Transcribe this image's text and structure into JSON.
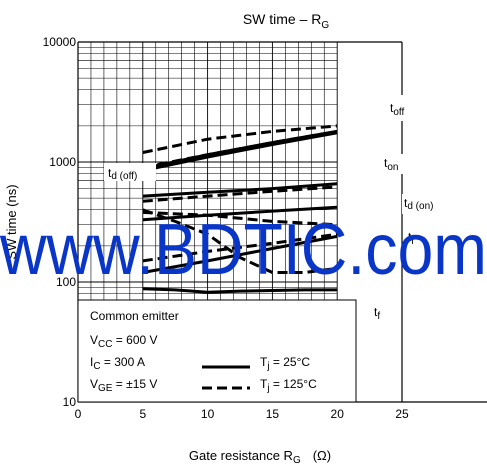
{
  "chart_data": {
    "type": "line",
    "title": "SW time – R",
    "title_sub": "G",
    "xlabel": "Gate resistance  R",
    "xlabel_sub": "G",
    "xlabel_unit": "(Ω)",
    "ylabel": "SW time   (ns)",
    "x_scale": "linear",
    "y_scale": "log",
    "xlim": [
      0,
      25
    ],
    "ylim": [
      10,
      10000
    ],
    "x_ticks": [
      0,
      5,
      10,
      15,
      20,
      25
    ],
    "x_tick_labels": [
      "0",
      "5",
      "10",
      "15",
      "20",
      "25"
    ],
    "y_ticks": [
      10,
      100,
      1000,
      10000
    ],
    "y_tick_labels": [
      "10",
      "100",
      "1000",
      "10000"
    ],
    "grid": true,
    "series": [
      {
        "curve": "toff",
        "condition": "Tj = 25°C",
        "x": [
          5,
          10,
          15,
          20
        ],
        "y": [
          880,
          1150,
          1450,
          1800
        ]
      },
      {
        "curve": "toff",
        "condition": "Tj = 125°C",
        "x": [
          5,
          10,
          15,
          20
        ],
        "y": [
          1200,
          1550,
          1800,
          2000
        ]
      },
      {
        "curve": "td(off)",
        "condition": "Tj = 25°C",
        "x": [
          5,
          10,
          15,
          20
        ],
        "y": [
          850,
          1100,
          1400,
          1750
        ]
      },
      {
        "curve": "td(off)",
        "condition": "Tj = 125°C",
        "x": [
          5,
          10,
          15,
          20
        ],
        "y": [
          900,
          1150,
          1450,
          1800
        ]
      },
      {
        "curve": "ton",
        "condition": "Tj = 25°C",
        "x": [
          5,
          10,
          15,
          20
        ],
        "y": [
          520,
          560,
          600,
          660
        ]
      },
      {
        "curve": "ton",
        "condition": "Tj = 125°C",
        "x": [
          5,
          10,
          15,
          20
        ],
        "y": [
          470,
          520,
          570,
          620
        ]
      },
      {
        "curve": "td(on)",
        "condition": "Tj = 25°C",
        "x": [
          5,
          10,
          15,
          20
        ],
        "y": [
          330,
          360,
          390,
          420
        ]
      },
      {
        "curve": "td(on)",
        "condition": "Tj = 125°C",
        "x": [
          5,
          10,
          15,
          20
        ],
        "y": [
          380,
          360,
          320,
          300
        ]
      },
      {
        "curve": "tr",
        "condition": "Tj = 25°C",
        "x": [
          5,
          10,
          15,
          20
        ],
        "y": [
          120,
          150,
          190,
          240
        ]
      },
      {
        "curve": "tr",
        "condition": "Tj = 125°C",
        "x": [
          5,
          10,
          15,
          20
        ],
        "y": [
          150,
          180,
          210,
          250
        ]
      },
      {
        "curve": "tf",
        "condition": "Tj = 25°C",
        "x": [
          5,
          7.5,
          10,
          12.5,
          15,
          17.5,
          20
        ],
        "y": [
          88,
          86,
          82,
          84,
          85,
          86,
          86
        ]
      },
      {
        "curve": "tf",
        "condition": "Tj = 125°C",
        "x": [
          5,
          7.5,
          10,
          12.5,
          15,
          17.5,
          20
        ],
        "y": [
          400,
          320,
          250,
          160,
          120,
          120,
          130
        ]
      }
    ],
    "curve_labels": [
      {
        "text": "t",
        "sub": "off"
      },
      {
        "text": "t",
        "sub": "d (off)"
      },
      {
        "text": "t",
        "sub": "on"
      },
      {
        "text": "t",
        "sub": "d (on)"
      },
      {
        "text": "t",
        "sub": "r"
      },
      {
        "text": "t",
        "sub": "f"
      }
    ],
    "legend": {
      "placement": "bottom-left",
      "title": "Common emitter",
      "conditions": [
        {
          "text": "V",
          "sub": "CC",
          "rest": " = 600 V"
        },
        {
          "text": "I",
          "sub": "C",
          "rest": " = 300 A"
        },
        {
          "text": "V",
          "sub": "GE",
          "rest": " = ±15 V"
        }
      ],
      "entries": [
        {
          "text": "T",
          "sub": "j",
          "rest": " = 25°C",
          "style": "solid"
        },
        {
          "text": "T",
          "sub": "j",
          "rest": " = 125°C",
          "style": "dashed"
        }
      ]
    }
  },
  "watermark": "www.BDTIC.com"
}
